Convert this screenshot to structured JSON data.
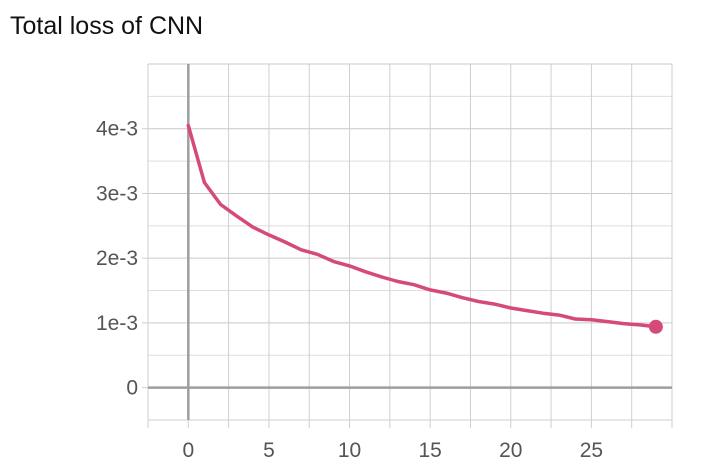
{
  "chart_data": {
    "type": "line",
    "title": "Total loss of CNN",
    "xlabel": "",
    "ylabel": "",
    "x_ticks": [
      "0",
      "5",
      "10",
      "15",
      "20",
      "25"
    ],
    "x_tick_values": [
      0,
      5,
      10,
      15,
      20,
      25
    ],
    "y_ticks": [
      "0",
      "1e-3",
      "2e-3",
      "3e-3",
      "4e-3"
    ],
    "y_tick_values": [
      0,
      0.001,
      0.002,
      0.003,
      0.004
    ],
    "xlim": [
      -2.5,
      30
    ],
    "ylim": [
      -0.0005,
      0.005
    ],
    "grid": true,
    "series": [
      {
        "color": "#d6497b",
        "x": [
          0,
          1,
          2,
          3,
          4,
          5,
          6,
          7,
          8,
          9,
          10,
          11,
          12,
          13,
          14,
          15,
          16,
          17,
          18,
          19,
          20,
          21,
          22,
          23,
          24,
          25,
          26,
          27,
          28,
          29
        ],
        "values": [
          0.00405,
          0.00317,
          0.00283,
          0.00265,
          0.00248,
          0.00236,
          0.00225,
          0.00213,
          0.00206,
          0.00195,
          0.00188,
          0.00179,
          0.00171,
          0.00164,
          0.00159,
          0.00151,
          0.00146,
          0.00139,
          0.00133,
          0.00129,
          0.00123,
          0.00119,
          0.00115,
          0.00112,
          0.00106,
          0.00105,
          0.00102,
          0.00099,
          0.00097,
          0.00094
        ]
      }
    ]
  }
}
